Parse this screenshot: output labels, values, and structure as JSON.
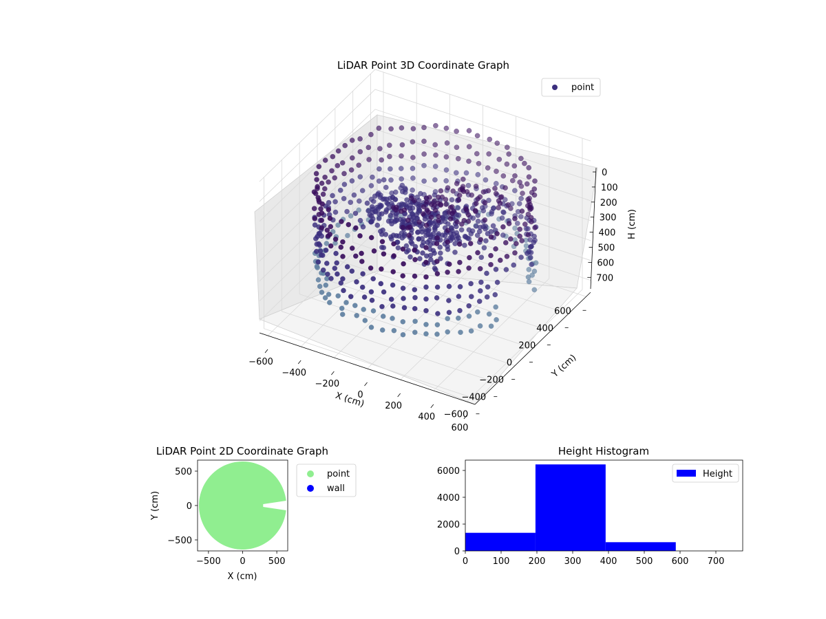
{
  "chart_data": [
    {
      "type": "scatter3d",
      "title": "LiDAR Point 3D Coordinate Graph",
      "xlabel": "X (cm)",
      "ylabel": "Y (cm)",
      "zlabel": "H (cm)",
      "xlim": [
        -650,
        650
      ],
      "ylim": [
        -650,
        650
      ],
      "zlim": [
        0,
        760
      ],
      "z_axis_inverted": true,
      "xticks": [
        -600,
        -400,
        -200,
        0,
        200,
        400,
        600
      ],
      "yticks": [
        -600,
        -400,
        -200,
        0,
        200,
        400,
        600
      ],
      "zticks": [
        0,
        100,
        200,
        300,
        400,
        500,
        600,
        700
      ],
      "legend": [
        "point"
      ],
      "legend_position": "upper-right",
      "grid": true,
      "colors": {
        "point": "#3b2f7e",
        "point_light": "#5f7fa0",
        "point_dark": "#3a0f5e"
      },
      "series": [
        {
          "name": "point",
          "structure": "stacked rings of points (cylindrical room scan)",
          "radius_cm": 620,
          "ring_heights_cm": [
            120,
            200,
            260,
            320,
            380,
            440,
            500,
            560
          ],
          "inner_clusters": [
            {
              "x": 0,
              "y": 0,
              "h_range": [
                250,
                450
              ]
            },
            {
              "x": -200,
              "y": 100,
              "h_range": [
                300,
                400
              ]
            },
            {
              "x": 150,
              "y": 200,
              "h_range": [
                200,
                420
              ]
            }
          ]
        }
      ]
    },
    {
      "type": "scatter",
      "title": "LiDAR Point 2D Coordinate Graph",
      "xlabel": "X (cm)",
      "ylabel": "Y (cm)",
      "xlim": [
        -660,
        660
      ],
      "ylim": [
        -660,
        660
      ],
      "xticks": [
        -500,
        0,
        500
      ],
      "yticks": [
        -500,
        0,
        500
      ],
      "legend": [
        "point",
        "wall"
      ],
      "legend_position": "outside-right",
      "colors": {
        "point": "#90ee90",
        "wall": "#0000ff"
      },
      "series": [
        {
          "name": "point",
          "shape": "filled disk",
          "radius_cm": 640,
          "notch": {
            "x_from": 300,
            "y_center": 0,
            "y_half_width": 70
          }
        },
        {
          "name": "wall",
          "values": []
        }
      ]
    },
    {
      "type": "bar",
      "title": "Height Histogram",
      "bins": [
        [
          0,
          196
        ],
        [
          196,
          392
        ],
        [
          392,
          588
        ],
        [
          588,
          784
        ]
      ],
      "values": [
        1350,
        6450,
        650,
        0
      ],
      "xlim": [
        0,
        775
      ],
      "ylim": [
        0,
        6770
      ],
      "xticks": [
        0,
        100,
        200,
        300,
        400,
        500,
        600,
        700
      ],
      "yticks": [
        0,
        2000,
        4000,
        6000
      ],
      "legend": [
        "Height"
      ],
      "legend_position": "upper-right",
      "colors": {
        "bar": "#0000ff"
      }
    }
  ]
}
